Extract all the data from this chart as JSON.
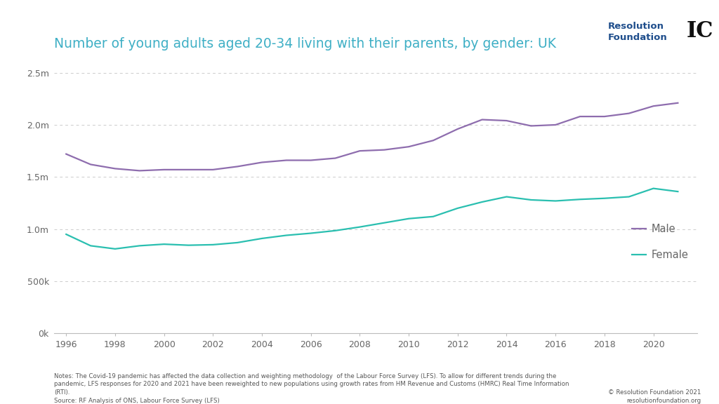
{
  "title": "Number of young adults aged 20-34 living with their parents, by gender: UK",
  "title_color": "#3eafc5",
  "background_color": "#ffffff",
  "plot_background_color": "#ffffff",
  "years": [
    1996,
    1997,
    1998,
    1999,
    2000,
    2001,
    2002,
    2003,
    2004,
    2005,
    2006,
    2007,
    2008,
    2009,
    2010,
    2011,
    2012,
    2013,
    2014,
    2015,
    2016,
    2017,
    2018,
    2019,
    2020,
    2021
  ],
  "male": [
    1720000,
    1620000,
    1580000,
    1560000,
    1570000,
    1570000,
    1570000,
    1600000,
    1640000,
    1660000,
    1660000,
    1680000,
    1750000,
    1760000,
    1790000,
    1850000,
    1960000,
    2050000,
    2040000,
    1990000,
    2000000,
    2080000,
    2080000,
    2110000,
    2180000,
    2210000
  ],
  "female": [
    950000,
    840000,
    810000,
    840000,
    855000,
    845000,
    850000,
    870000,
    910000,
    940000,
    960000,
    985000,
    1020000,
    1060000,
    1100000,
    1120000,
    1200000,
    1260000,
    1310000,
    1280000,
    1270000,
    1285000,
    1295000,
    1310000,
    1390000,
    1360000
  ],
  "male_color": "#8e6dae",
  "female_color": "#2abfb0",
  "ylim": [
    0,
    2500000
  ],
  "yticks": [
    0,
    500000,
    1000000,
    1500000,
    2000000,
    2500000
  ],
  "ytick_labels": [
    "0k",
    "500k",
    "1.0m",
    "1.5m",
    "2.0m",
    "2.5m"
  ],
  "xtick_years": [
    1996,
    1998,
    2000,
    2002,
    2004,
    2006,
    2008,
    2010,
    2012,
    2014,
    2016,
    2018,
    2020
  ],
  "grid_color": "#cccccc",
  "axis_color": "#bbbbbb",
  "tick_color": "#666666",
  "notes_left": "Notes: The Covid-19 pandemic has affected the data collection and weighting methodology  of the Labour Force Survey (LFS). To allow for different trends during the\npandemic, LFS responses for 2020 and 2021 have been reweighted to new populations using growth rates from HM Revenue and Customs (HMRC) Real Time Information\n(RTI).\nSource: RF Analysis of ONS, Labour Force Survey (LFS)",
  "notes_right": "© Resolution Foundation 2021\nresolutionfoundation.org",
  "line_width": 1.6,
  "rf_text": "Resolution\nFoundation",
  "rf_color": "#1f4e8c"
}
